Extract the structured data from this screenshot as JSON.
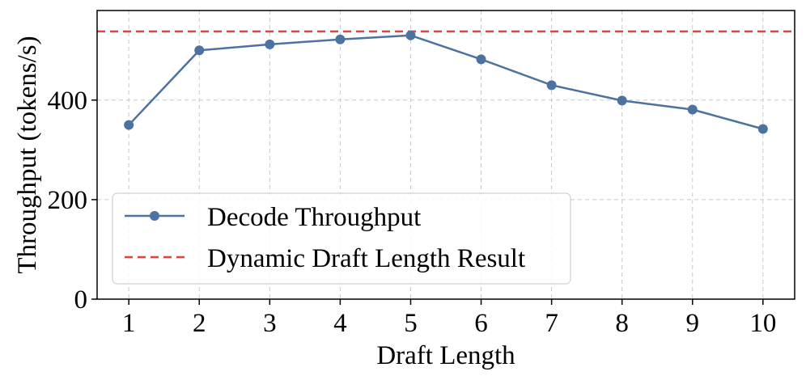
{
  "chart_data": {
    "type": "line",
    "xlabel": "Draft Length",
    "ylabel": "Throughput (tokens/s)",
    "x": [
      1,
      2,
      3,
      4,
      5,
      6,
      7,
      8,
      9,
      10
    ],
    "ylim": [
      0,
      580
    ],
    "yticks": [
      0,
      200,
      400
    ],
    "grid": true,
    "legend_position": "lower-left",
    "series": [
      {
        "name": "Decode Throughput",
        "style": "solid-marker",
        "color": "#4c72a0",
        "values": [
          350,
          500,
          512,
          522,
          530,
          482,
          430,
          399,
          381,
          342
        ]
      }
    ],
    "reference_lines": [
      {
        "name": "Dynamic Draft Length Result",
        "style": "dashed",
        "color": "#e8413c",
        "value": 538
      }
    ]
  }
}
